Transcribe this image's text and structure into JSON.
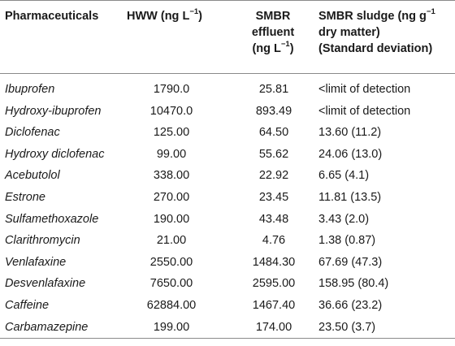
{
  "header": {
    "col0": "Pharmaceuticals",
    "col1_main": "HWW (ng L",
    "col1_exp": "−1",
    "col1_end": ")",
    "col2_line1": "SMBR",
    "col2_line2": "effluent",
    "col2_line3_main": "(ng L",
    "col2_line3_exp": "−1",
    "col2_line3_end": ")",
    "col3_line1_main": "SMBR sludge (ng g",
    "col3_line1_exp": "−1",
    "col3_line2": "dry matter)",
    "col3_line3": "(Standard deviation)"
  },
  "rows": [
    {
      "name": "Ibuprofen",
      "hww": "1790.0",
      "effluent": "25.81",
      "sludge": "<limit of detection"
    },
    {
      "name": "Hydroxy-ibuprofen",
      "hww": "10470.0",
      "effluent": "893.49",
      "sludge": "<limit of detection"
    },
    {
      "name": "Diclofenac",
      "hww": "125.00",
      "effluent": "64.50",
      "sludge": "13.60 (11.2)"
    },
    {
      "name": "Hydroxy diclofenac",
      "hww": "99.00",
      "effluent": "55.62",
      "sludge": "24.06 (13.0)"
    },
    {
      "name": "Acebutolol",
      "hww": "338.00",
      "effluent": "22.92",
      "sludge": "6.65 (4.1)"
    },
    {
      "name": "Estrone",
      "hww": "270.00",
      "effluent": "23.45",
      "sludge": "11.81 (13.5)"
    },
    {
      "name": "Sulfamethoxazole",
      "hww": "190.00",
      "effluent": "43.48",
      "sludge": "3.43 (2.0)"
    },
    {
      "name": "Clarithromycin",
      "hww": "21.00",
      "effluent": "4.76",
      "sludge": "1.38 (0.87)"
    },
    {
      "name": "Venlafaxine",
      "hww": "2550.00",
      "effluent": "1484.30",
      "sludge": "67.69 (47.3)"
    },
    {
      "name": "Desvenlafaxine",
      "hww": "7650.00",
      "effluent": "2595.00",
      "sludge": "158.95 (80.4)"
    },
    {
      "name": "Caffeine",
      "hww": "62884.00",
      "effluent": "1467.40",
      "sludge": "36.66 (23.2)"
    },
    {
      "name": "Carbamazepine",
      "hww": "199.00",
      "effluent": "174.00",
      "sludge": "23.50 (3.7)"
    }
  ]
}
